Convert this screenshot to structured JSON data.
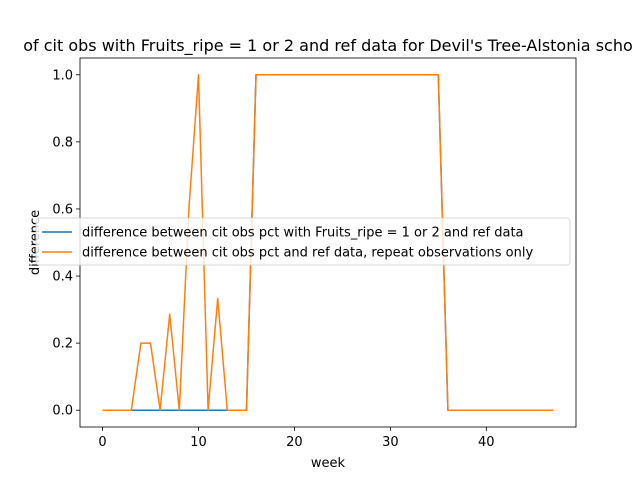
{
  "chart_data": {
    "type": "line",
    "title": "of cit obs with Fruits_ripe = 1 or 2 and ref data for Devil's Tree-Alstonia scho",
    "xlabel": "week",
    "ylabel": "difference",
    "xlim": [
      -2.35,
      49.35
    ],
    "ylim": [
      -0.05,
      1.05
    ],
    "xticks": [
      0,
      10,
      20,
      30,
      40
    ],
    "xtick_labels": [
      "0",
      "10",
      "20",
      "30",
      "40"
    ],
    "yticks": [
      0.0,
      0.2,
      0.4,
      0.6,
      0.8,
      1.0
    ],
    "ytick_labels": [
      "0.0",
      "0.2",
      "0.4",
      "0.6",
      "0.8",
      "1.0"
    ],
    "grid": false,
    "legend_position": "center-left",
    "x": [
      0,
      1,
      2,
      3,
      4,
      5,
      6,
      7,
      8,
      9,
      10,
      11,
      12,
      13,
      14,
      15,
      16,
      17,
      18,
      19,
      20,
      21,
      22,
      23,
      24,
      25,
      26,
      27,
      28,
      29,
      30,
      31,
      32,
      33,
      34,
      35,
      36,
      37,
      38,
      39,
      40,
      41,
      42,
      43,
      44,
      45,
      46,
      47
    ],
    "series": [
      {
        "name": "difference between cit obs pct with Fruits_ripe = 1 or 2 and ref data",
        "color": "#1f77b4",
        "values": [
          0,
          0,
          0,
          0,
          0,
          0,
          0,
          0,
          0,
          0,
          0,
          0,
          0,
          0,
          0,
          0,
          1,
          1,
          1,
          1,
          1,
          1,
          1,
          1,
          1,
          1,
          1,
          1,
          1,
          1,
          1,
          1,
          1,
          1,
          1,
          1,
          0,
          0,
          0,
          0,
          0,
          0,
          0,
          0,
          0,
          0,
          0,
          0
        ]
      },
      {
        "name": "difference between cit obs pct and ref data, repeat observations only",
        "color": "#ff7f0e",
        "values": [
          0,
          0,
          0,
          0,
          0.2,
          0.2,
          0,
          0.286,
          0,
          0.6,
          1.0,
          0,
          0.333,
          0,
          0,
          0,
          1,
          1,
          1,
          1,
          1,
          1,
          1,
          1,
          1,
          1,
          1,
          1,
          1,
          1,
          1,
          1,
          1,
          1,
          1,
          1,
          0,
          0,
          0,
          0,
          0,
          0,
          0,
          0,
          0,
          0,
          0,
          0
        ]
      }
    ]
  }
}
